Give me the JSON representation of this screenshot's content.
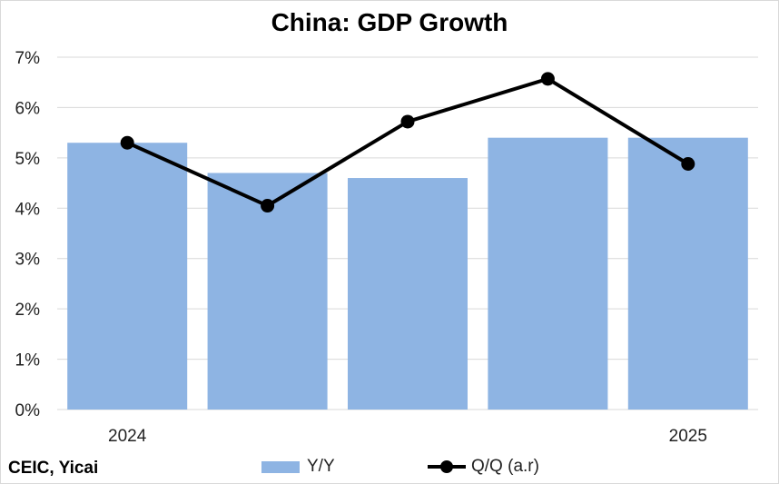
{
  "chart_data": {
    "type": "bar",
    "title": "China: GDP Growth",
    "categories": [
      "2024",
      "",
      "",
      "",
      "2025"
    ],
    "ylim": [
      0,
      7
    ],
    "yticks": [
      "0%",
      "1%",
      "2%",
      "3%",
      "4%",
      "5%",
      "6%",
      "7%"
    ],
    "grid": true,
    "legend_position": "bottom",
    "series": [
      {
        "name": "Y/Y",
        "type": "bar",
        "color": "#8eb4e3",
        "values": [
          5.3,
          4.7,
          4.6,
          5.4,
          5.4
        ]
      },
      {
        "name": "Q/Q (a.r)",
        "type": "line",
        "color": "#000000",
        "values": [
          5.3,
          4.05,
          5.72,
          6.57,
          4.88
        ]
      }
    ]
  },
  "source": "CEIC, Yicai"
}
